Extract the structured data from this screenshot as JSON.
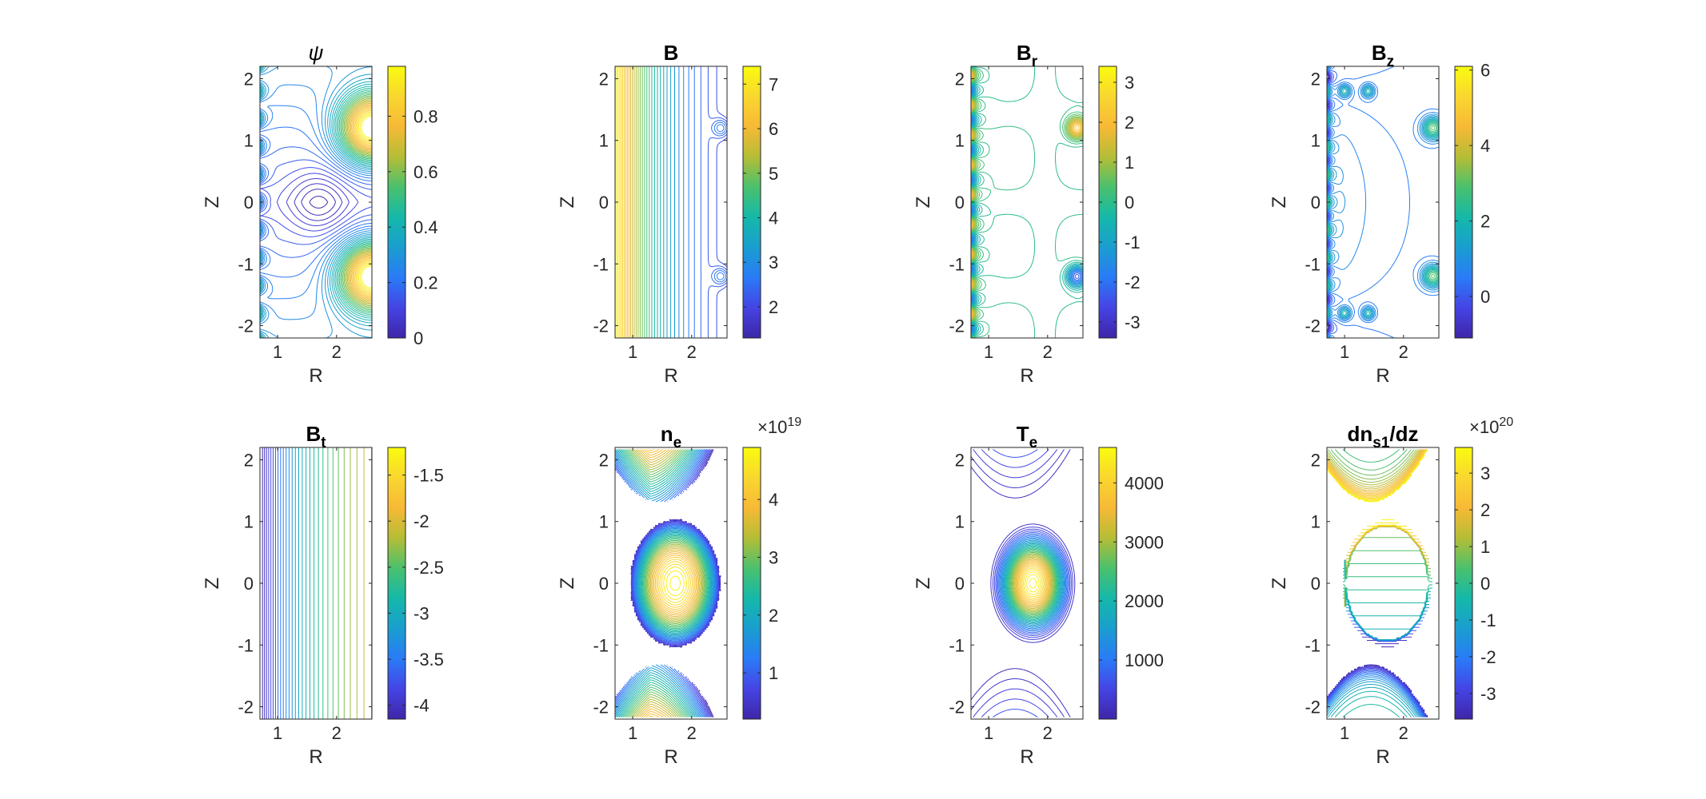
{
  "figure": {
    "colormap": [
      "#3e26a8",
      "#4544e4",
      "#2a7bf7",
      "#1a9ecf",
      "#15b8a9",
      "#4ac16d",
      "#b5bd36",
      "#f7b936",
      "#f9d72f",
      "#f9fb0e"
    ],
    "background": "#ffffff"
  },
  "chart_data": [
    {
      "type": "heatmap",
      "plot": "contour",
      "title": "ψ",
      "title_sub": "",
      "xlabel": "R",
      "ylabel": "Z",
      "xlim": [
        0.7,
        2.6
      ],
      "ylim": [
        -2.2,
        2.2
      ],
      "xticks": [
        "1",
        "2"
      ],
      "yticks": [
        "-2",
        "-1",
        "0",
        "1",
        "2"
      ],
      "clim": [
        0,
        0.98
      ],
      "cticks": [
        "0",
        "0.2",
        "0.4",
        "0.6",
        "0.8"
      ],
      "cmult": "",
      "pattern": "psi",
      "features": {
        "o_point": [
          1.7,
          0
        ],
        "coils": [
          [
            2.6,
            1.2
          ],
          [
            2.6,
            -1.2
          ]
        ]
      }
    },
    {
      "type": "heatmap",
      "plot": "contour",
      "title": "B",
      "title_sub": "",
      "xlabel": "R",
      "ylabel": "Z",
      "xlim": [
        0.7,
        2.6
      ],
      "ylim": [
        -2.2,
        2.2
      ],
      "xticks": [
        "1",
        "2"
      ],
      "yticks": [
        "-2",
        "-1",
        "0",
        "1",
        "2"
      ],
      "clim": [
        1.3,
        7.4
      ],
      "cticks": [
        "2",
        "3",
        "4",
        "5",
        "6",
        "7"
      ],
      "cmult": "",
      "pattern": "B",
      "features": {
        "coils": [
          [
            2.5,
            1.2
          ],
          [
            2.5,
            -1.2
          ]
        ]
      }
    },
    {
      "type": "heatmap",
      "plot": "contour",
      "title": "B",
      "title_sub": "r",
      "xlabel": "R",
      "ylabel": "Z",
      "xlim": [
        0.7,
        2.6
      ],
      "ylim": [
        -2.2,
        2.2
      ],
      "xticks": [
        "1",
        "2"
      ],
      "yticks": [
        "-2",
        "-1",
        "0",
        "1",
        "2"
      ],
      "clim": [
        -3.4,
        3.4
      ],
      "cticks": [
        "-3",
        "-2",
        "-1",
        "0",
        "1",
        "2",
        "3"
      ],
      "cmult": "",
      "pattern": "Br",
      "features": {
        "coils": [
          [
            2.5,
            1.2
          ],
          [
            2.5,
            -1.2
          ]
        ]
      }
    },
    {
      "type": "heatmap",
      "plot": "contour",
      "title": "B",
      "title_sub": "z",
      "xlabel": "R",
      "ylabel": "Z",
      "xlim": [
        0.7,
        2.6
      ],
      "ylim": [
        -2.2,
        2.2
      ],
      "xticks": [
        "1",
        "2"
      ],
      "yticks": [
        "-2",
        "-1",
        "0",
        "1",
        "2"
      ],
      "clim": [
        -1.1,
        6.1
      ],
      "cticks": [
        "0",
        "2",
        "4",
        "6"
      ],
      "cmult": "",
      "pattern": "Bz",
      "features": {
        "coils": [
          [
            2.5,
            1.2
          ],
          [
            2.5,
            -1.2
          ],
          [
            1.0,
            1.8
          ],
          [
            1.4,
            1.8
          ],
          [
            1.0,
            -1.8
          ],
          [
            1.4,
            -1.8
          ]
        ]
      }
    },
    {
      "type": "heatmap",
      "plot": "contour",
      "title": "B",
      "title_sub": "t",
      "xlabel": "R",
      "ylabel": "Z",
      "xlim": [
        0.7,
        2.6
      ],
      "ylim": [
        -2.2,
        2.2
      ],
      "xticks": [
        "1",
        "2"
      ],
      "yticks": [
        "-2",
        "-1",
        "0",
        "1",
        "2"
      ],
      "clim": [
        -4.15,
        -1.2
      ],
      "cticks": [
        "-4",
        "-3.5",
        "-3",
        "-2.5",
        "-2",
        "-1.5"
      ],
      "cmult": "",
      "pattern": "Bt",
      "features": {}
    },
    {
      "type": "heatmap",
      "plot": "contour",
      "title": "n",
      "title_sub": "e",
      "xlabel": "R",
      "ylabel": "Z",
      "xlim": [
        0.7,
        2.6
      ],
      "ylim": [
        -2.2,
        2.2
      ],
      "xticks": [
        "1",
        "2"
      ],
      "yticks": [
        "-2",
        "-1",
        "0",
        "1",
        "2"
      ],
      "clim": [
        0.2,
        4.9
      ],
      "cticks": [
        "1",
        "2",
        "3",
        "4"
      ],
      "cmult": "×10",
      "cmult_exp": "19",
      "pattern": "ne",
      "features": {
        "o_point": [
          1.75,
          0
        ]
      }
    },
    {
      "type": "heatmap",
      "plot": "contour",
      "title": "T",
      "title_sub": "e",
      "xlabel": "R",
      "ylabel": "Z",
      "xlim": [
        0.7,
        2.6
      ],
      "ylim": [
        -2.2,
        2.2
      ],
      "xticks": [
        "1",
        "2"
      ],
      "yticks": [
        "-2",
        "-1",
        "0",
        "1",
        "2"
      ],
      "clim": [
        0,
        4600
      ],
      "cticks": [
        "1000",
        "2000",
        "3000",
        "4000"
      ],
      "cmult": "",
      "pattern": "Te",
      "features": {
        "o_point": [
          1.75,
          0
        ]
      }
    },
    {
      "type": "heatmap",
      "plot": "contour",
      "title": "dn",
      "title_sub": "s1",
      "title_rest": "/dz",
      "xlabel": "R",
      "ylabel": "Z",
      "xlim": [
        0.7,
        2.6
      ],
      "ylim": [
        -2.2,
        2.2
      ],
      "xticks": [
        "1",
        "2"
      ],
      "yticks": [
        "-2",
        "-1",
        "0",
        "1",
        "2"
      ],
      "clim": [
        -3.7,
        3.7
      ],
      "cticks": [
        "-3",
        "-2",
        "-1",
        "0",
        "1",
        "2",
        "3"
      ],
      "cmult": "×10",
      "cmult_exp": "20",
      "pattern": "dn",
      "features": {}
    }
  ]
}
